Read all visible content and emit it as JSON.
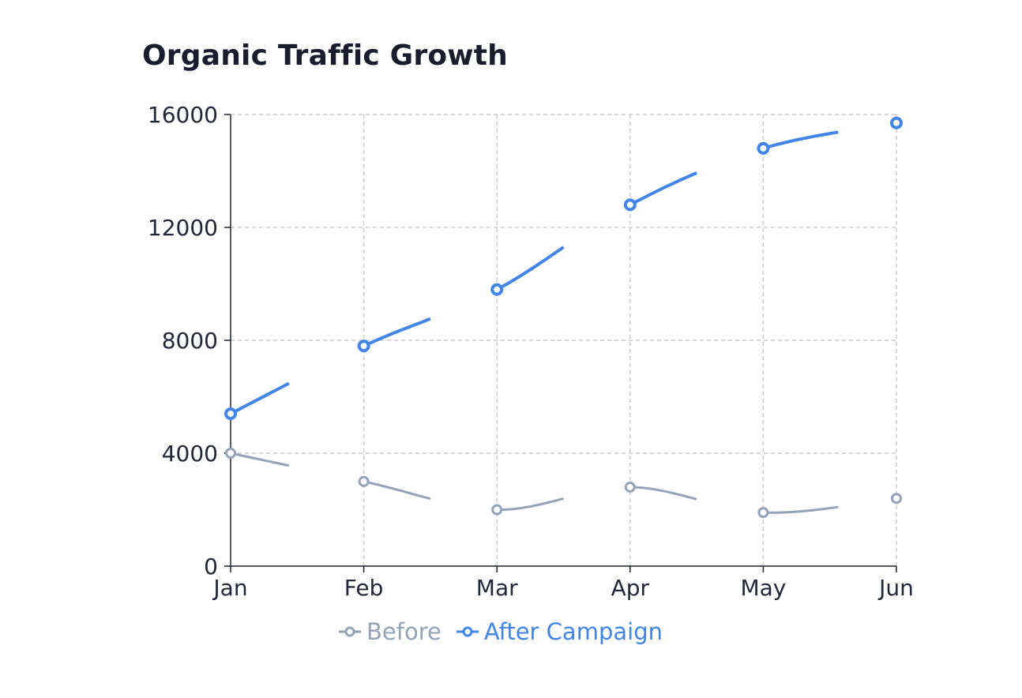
{
  "title": "Organic Traffic Growth",
  "colors": {
    "before": "#94a3b8",
    "after": "#4285e6",
    "grid": "#cccccc",
    "axis": "#1f2233"
  },
  "legend": {
    "before_label": "Before",
    "after_label": "After Campaign"
  },
  "chart_data": {
    "type": "line",
    "title": "Organic Traffic Growth",
    "xlabel": "",
    "ylabel": "",
    "categories": [
      "Jan",
      "Feb",
      "Mar",
      "Apr",
      "May",
      "Jun"
    ],
    "ylim": [
      0,
      16000
    ],
    "yticks": [
      0,
      4000,
      8000,
      12000,
      16000
    ],
    "grid": true,
    "legend_position": "bottom-center",
    "series": [
      {
        "name": "Before",
        "key": "before",
        "values": [
          4000,
          3000,
          2000,
          2800,
          1900,
          2400
        ]
      },
      {
        "name": "After Campaign",
        "key": "after",
        "values": [
          5400,
          7800,
          9800,
          12800,
          14800,
          15700
        ]
      }
    ]
  }
}
